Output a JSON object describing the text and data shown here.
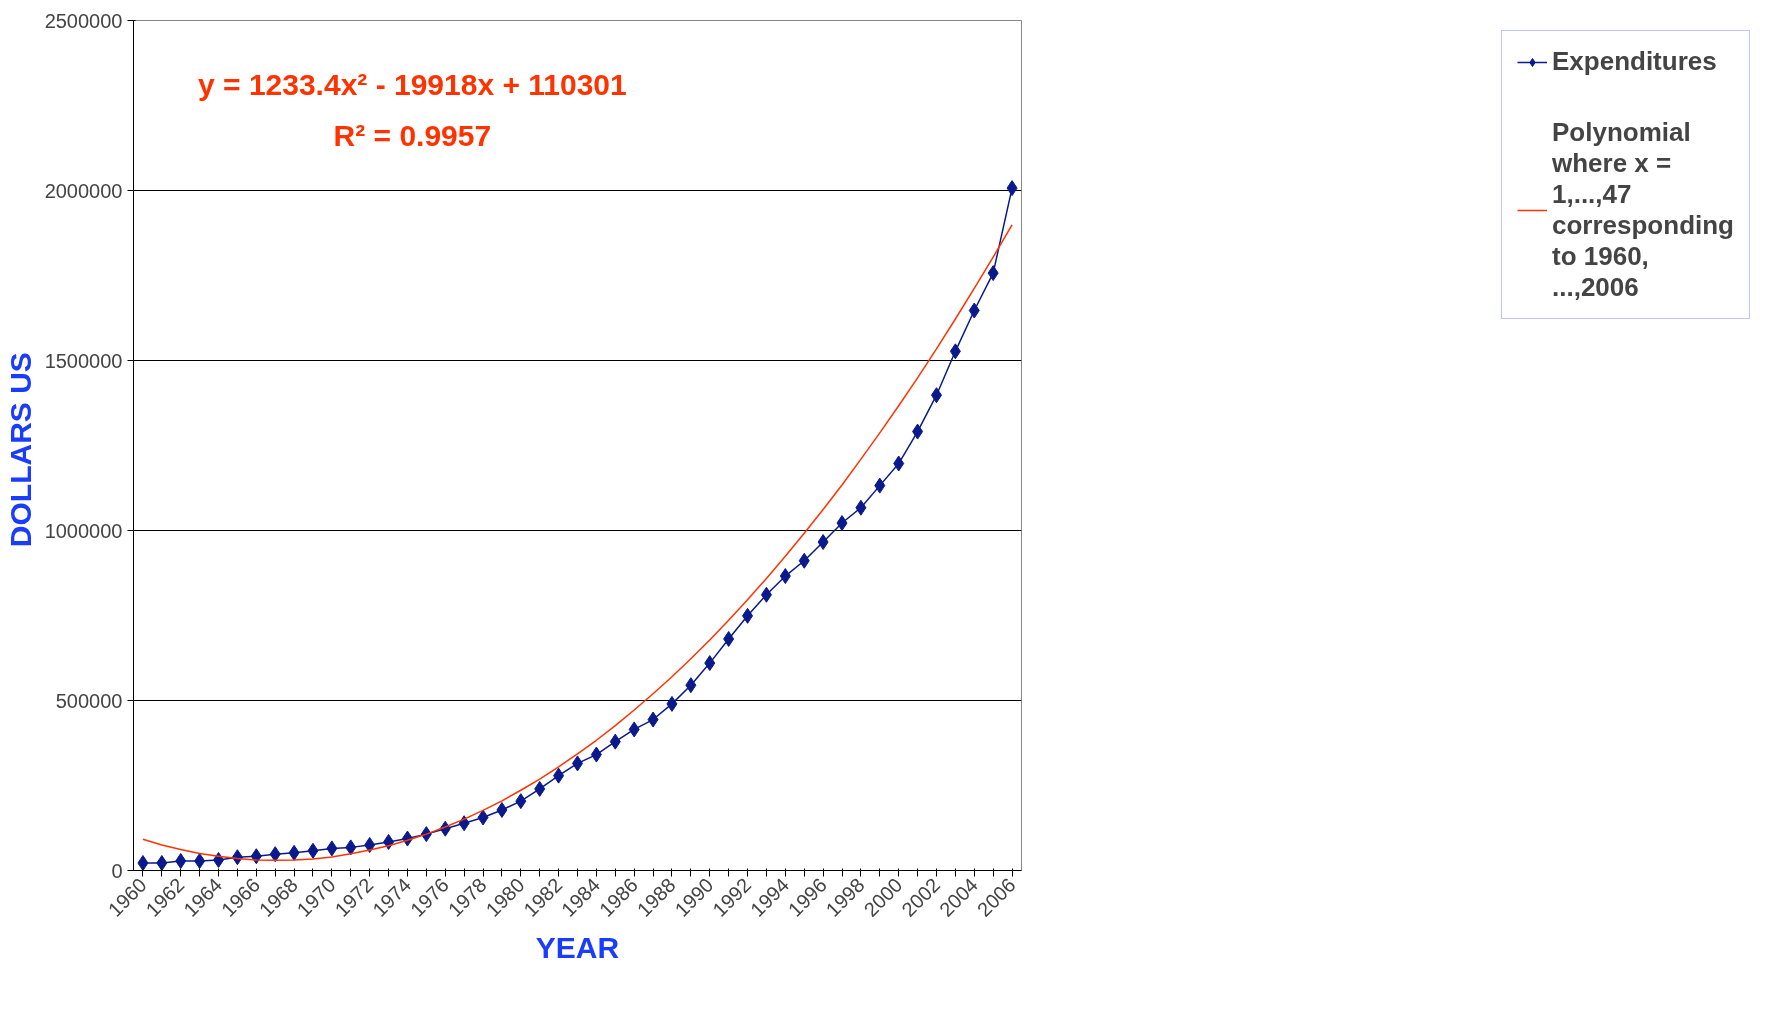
{
  "chart_data": {
    "type": "line",
    "xlabel": "YEAR",
    "ylabel": "DOLLARS  US",
    "categories": [
      "1960",
      null,
      "1962",
      null,
      "1964",
      null,
      "1966",
      null,
      "1968",
      null,
      "1970",
      null,
      "1972",
      null,
      "1974",
      null,
      "1976",
      null,
      "1978",
      null,
      "1980",
      null,
      "1982",
      null,
      "1984",
      null,
      "1986",
      null,
      "1988",
      null,
      "1990",
      null,
      "1992",
      null,
      "1994",
      null,
      "1996",
      null,
      "1998",
      null,
      "2000",
      null,
      "2002",
      null,
      "2004",
      null,
      "2006"
    ],
    "series": [
      {
        "name": "Expenditures",
        "color": "#0a1a8c",
        "marker": "diamond",
        "values": [
          22000,
          22000,
          28000,
          28000,
          31000,
          39000,
          42000,
          48000,
          52000,
          58000,
          65000,
          68000,
          75000,
          84000,
          94000,
          107000,
          123000,
          139000,
          156000,
          178000,
          204000,
          240000,
          279000,
          315000,
          341000,
          379000,
          415000,
          444000,
          490000,
          545000,
          610000,
          681000,
          749000,
          811000,
          866000,
          911000,
          966000,
          1022000,
          1067000,
          1132000,
          1197000,
          1291000,
          1398000,
          1527000,
          1647000,
          1757000,
          2007000
        ]
      },
      {
        "name": "Polynomial where x = 1,...,47 corresponding to 1960, ...,2006",
        "color": "#ff3300",
        "marker": "none",
        "values": [
          92000,
          75000,
          62000,
          50000,
          42000,
          35000,
          31000,
          30000,
          31000,
          34000,
          40000,
          49000,
          60000,
          73000,
          89000,
          107000,
          128000,
          151000,
          177000,
          205000,
          236000,
          269000,
          305000,
          343000,
          383000,
          426000,
          472000,
          520000,
          570000,
          623000,
          678000,
          736000,
          796000,
          859000,
          924000,
          992000,
          1062000,
          1134000,
          1210000,
          1287000,
          1367000,
          1449000,
          1534000,
          1622000,
          1712000,
          1804000,
          1899000
        ]
      }
    ],
    "ylim": [
      0,
      2500000
    ],
    "yticks": [
      0,
      500000,
      1000000,
      1500000,
      2000000,
      2500000
    ],
    "grid": "y",
    "legend": "right",
    "line_style": "solid",
    "annotations": [
      "y = 1233.4x² - 19918x + 110301",
      "R² = 0.9957"
    ]
  }
}
